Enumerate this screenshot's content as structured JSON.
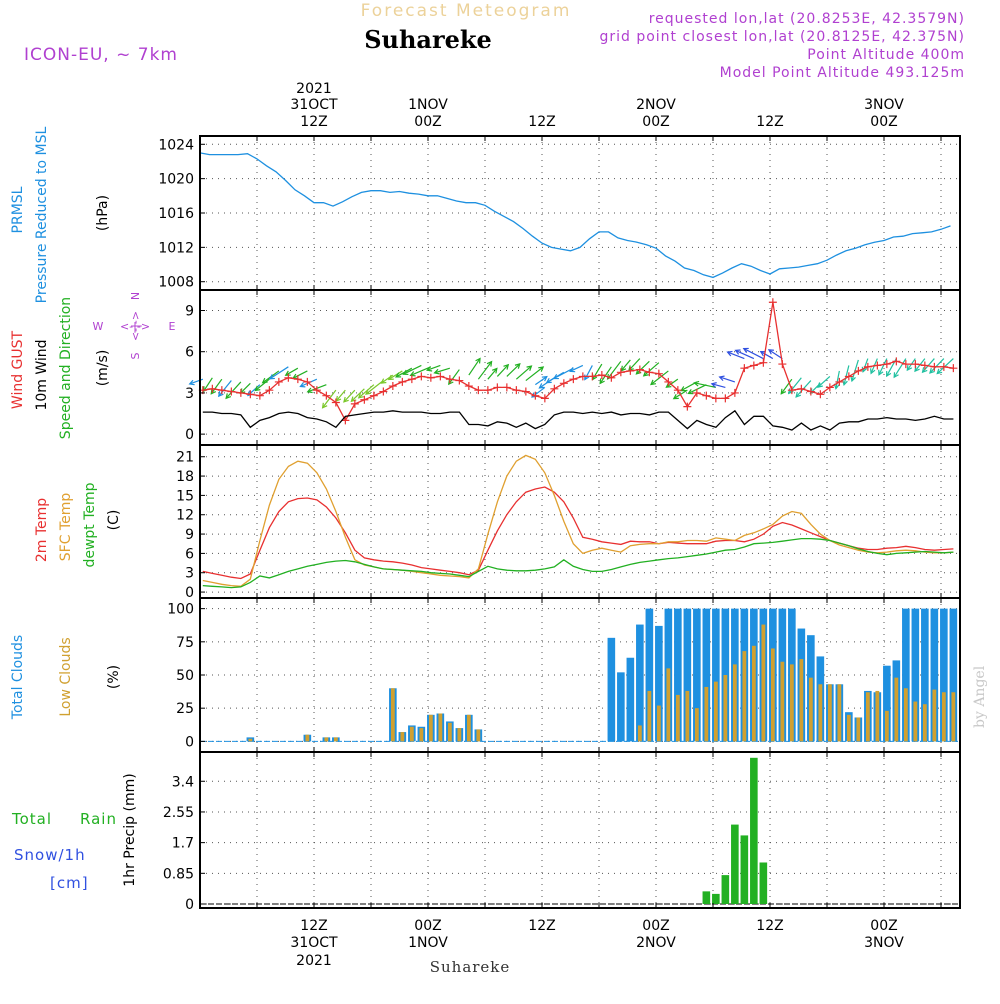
{
  "header": {
    "title": "Forecast Meteogram",
    "location": "Suhareke",
    "model": "ICON-EU, ~ 7km",
    "requested": "requested lon,lat (20.8253E, 42.3579N)",
    "gridpoint": "grid point closest lon,lat (20.8125E, 42.375N)",
    "altitude": "Point Altitude 400m",
    "model_altitude": "Model Point Altitude 493.125m"
  },
  "footer": {
    "location": "Suhareke",
    "credit": "by Angel"
  },
  "time_axis": {
    "top": [
      {
        "t": 12,
        "l1": "2021",
        "l2": "31OCT",
        "l3": "12Z"
      },
      {
        "t": 24,
        "l2": "1NOV",
        "l3": "00Z"
      },
      {
        "t": 36,
        "l3": "12Z"
      },
      {
        "t": 48,
        "l2": "2NOV",
        "l3": "00Z"
      },
      {
        "t": 60,
        "l3": "12Z"
      },
      {
        "t": 72,
        "l2": "3NOV",
        "l3": "00Z"
      }
    ],
    "bottom": [
      {
        "t": 12,
        "l1": "12Z",
        "l2": "31OCT",
        "l3": "2021"
      },
      {
        "t": 24,
        "l1": "00Z",
        "l2": "1NOV"
      },
      {
        "t": 36,
        "l1": "12Z"
      },
      {
        "t": 48,
        "l1": "00Z",
        "l2": "2NOV"
      },
      {
        "t": 60,
        "l1": "12Z"
      },
      {
        "t": 72,
        "l1": "00Z",
        "l2": "3NOV"
      }
    ]
  },
  "panels": {
    "pressure": {
      "labels": [
        {
          "text": "PRMSL",
          "color": "#1e90e0"
        },
        {
          "text": "Pressure Reduced to MSL",
          "color": "#1e90e0"
        },
        {
          "text": "(hPa)",
          "color": "#000000"
        }
      ]
    },
    "wind": {
      "labels": [
        {
          "text": "Wind GUST",
          "color": "#e83030"
        },
        {
          "text": "10m Wind",
          "color": "#000000"
        },
        {
          "text": "Speed and Direction",
          "color": "#22b022"
        },
        {
          "text": "(m/s)",
          "color": "#000000"
        }
      ],
      "compass": {
        "n": "N",
        "s": "S",
        "e": "E",
        "w": "W",
        "color": "#b040d0"
      }
    },
    "temp": {
      "labels": [
        {
          "text": "2m Temp",
          "color": "#e83030"
        },
        {
          "text": "SFC Temp",
          "color": "#e0a030"
        },
        {
          "text": "dewpt Temp",
          "color": "#22b022"
        },
        {
          "text": "(C)",
          "color": "#000000"
        }
      ]
    },
    "clouds": {
      "labels": [
        {
          "text": "Total Clouds",
          "color": "#1e90e0"
        },
        {
          "text": "Low Clouds",
          "color": "#d0a030"
        },
        {
          "text": "(%)",
          "color": "#000000"
        }
      ]
    },
    "precip": {
      "labels": [
        {
          "text": "Total",
          "color": "#22b022"
        },
        {
          "text": "Rain",
          "color": "#22b022"
        },
        {
          "text": "Snow/1h",
          "color": "#3050e0"
        },
        {
          "text": "[cm]",
          "color": "#3050e0"
        },
        {
          "text": "1hr Precip (mm)",
          "color": "#000000"
        }
      ]
    }
  },
  "chart_data": [
    {
      "type": "line",
      "name": "pressure",
      "ylim": [
        1007.5,
        1024.5
      ],
      "yticks": [
        1008,
        1012,
        1016,
        1020,
        1024
      ],
      "series": [
        {
          "name": "PRMSL",
          "color": "#1e90e0",
          "x": [
            0,
            1,
            2,
            3,
            4,
            5,
            6,
            7,
            8,
            9,
            10,
            11,
            12,
            13,
            14,
            15,
            16,
            17,
            18,
            19,
            20,
            21,
            22,
            23,
            24,
            25,
            26,
            27,
            28,
            29,
            30,
            31,
            32,
            33,
            34,
            35,
            36,
            37,
            38,
            39,
            40,
            41,
            42,
            43,
            44,
            45,
            46,
            47,
            48,
            49,
            50,
            51,
            52,
            53,
            54,
            55,
            56,
            57,
            58,
            59,
            60,
            61,
            62,
            63,
            64,
            65,
            66,
            67,
            68,
            69,
            70,
            71,
            72,
            73,
            74,
            75,
            76,
            77,
            78,
            79
          ],
          "y": [
            1023.0,
            1022.8,
            1022.8,
            1022.8,
            1022.8,
            1022.9,
            1022.3,
            1021.5,
            1020.8,
            1019.8,
            1018.7,
            1018.0,
            1017.2,
            1017.2,
            1016.8,
            1017.3,
            1017.9,
            1018.4,
            1018.6,
            1018.6,
            1018.4,
            1018.5,
            1018.3,
            1018.2,
            1018.0,
            1018.0,
            1017.7,
            1017.4,
            1017.2,
            1017.2,
            1016.9,
            1016.2,
            1015.6,
            1015.0,
            1014.2,
            1013.3,
            1012.5,
            1012.0,
            1011.8,
            1011.6,
            1012.0,
            1013.0,
            1013.8,
            1013.8,
            1013.1,
            1012.8,
            1012.6,
            1012.3,
            1011.9,
            1011.0,
            1010.4,
            1009.6,
            1009.3,
            1008.8,
            1008.5,
            1009.0,
            1009.6,
            1010.1,
            1009.8,
            1009.3,
            1008.9,
            1009.5,
            1009.6,
            1009.7,
            1009.9,
            1010.1,
            1010.5,
            1011.1,
            1011.6,
            1011.9,
            1012.3,
            1012.6,
            1012.8,
            1013.2,
            1013.3,
            1013.6,
            1013.7,
            1013.8,
            1014.1,
            1014.5
          ]
        }
      ]
    },
    {
      "type": "line",
      "name": "wind",
      "ylim": [
        -0.5,
        10.2
      ],
      "yticks": [
        0,
        3,
        6,
        9
      ],
      "series": [
        {
          "name": "Wind GUST",
          "color": "#e83030",
          "y": [
            3.2,
            3.3,
            3.2,
            3.1,
            3.0,
            2.9,
            2.8,
            3.2,
            3.8,
            4.1,
            4.0,
            3.8,
            3.2,
            2.8,
            2.3,
            1.0,
            2.2,
            2.5,
            2.8,
            3.1,
            3.5,
            3.8,
            4.0,
            4.2,
            4.1,
            4.2,
            4.0,
            3.9,
            3.5,
            3.2,
            3.2,
            3.4,
            3.4,
            3.2,
            3.1,
            2.8,
            2.6,
            3.3,
            3.7,
            4.0,
            4.2,
            4.2,
            4.3,
            4.1,
            4.5,
            4.6,
            4.7,
            4.5,
            4.4,
            3.8,
            3.2,
            2.0,
            3.0,
            2.8,
            2.6,
            2.6,
            3.0,
            4.8,
            5.0,
            5.2,
            9.6,
            5.1,
            3.2,
            3.3,
            3.1,
            2.9,
            3.4,
            3.8,
            4.2,
            4.6,
            4.9,
            5.0,
            5.1,
            5.3,
            5.1,
            5.1,
            5.0,
            4.9,
            4.9,
            4.8
          ]
        },
        {
          "name": "10m Wind",
          "color": "#000000",
          "y": [
            1.6,
            1.6,
            1.5,
            1.5,
            1.4,
            0.5,
            1.0,
            1.2,
            1.5,
            1.6,
            1.5,
            1.2,
            1.1,
            0.9,
            0.5,
            1.3,
            1.4,
            1.5,
            1.6,
            1.6,
            1.7,
            1.6,
            1.6,
            1.6,
            1.5,
            1.5,
            1.6,
            1.6,
            0.7,
            0.7,
            0.6,
            0.9,
            0.8,
            0.5,
            0.8,
            0.4,
            0.7,
            1.4,
            1.6,
            1.6,
            1.5,
            1.6,
            1.5,
            1.6,
            1.4,
            1.5,
            1.5,
            1.4,
            1.6,
            1.6,
            1.0,
            0.4,
            1.0,
            0.7,
            0.5,
            1.2,
            1.7,
            0.7,
            1.3,
            1.3,
            0.6,
            0.5,
            0.3,
            0.8,
            0.3,
            0.6,
            0.3,
            0.8,
            0.9,
            0.9,
            1.1,
            1.1,
            1.2,
            1.1,
            1.1,
            1.0,
            1.1,
            1.3,
            1.1,
            1.1
          ]
        }
      ]
    },
    {
      "type": "line",
      "name": "temp",
      "ylim": [
        -0.3,
        22.2
      ],
      "yticks": [
        0,
        3,
        6,
        9,
        12,
        15,
        18,
        21
      ],
      "series": [
        {
          "name": "2m Temp",
          "color": "#e83030",
          "y": [
            3.2,
            2.9,
            2.6,
            2.3,
            2.1,
            2.8,
            6.5,
            10.0,
            12.5,
            14.0,
            14.5,
            14.6,
            14.3,
            13.2,
            11.5,
            9.2,
            6.5,
            5.3,
            5.0,
            4.8,
            4.7,
            4.5,
            4.2,
            3.8,
            3.6,
            3.4,
            3.2,
            3.0,
            2.7,
            3.4,
            6.5,
            9.5,
            12.0,
            14.0,
            15.5,
            16.0,
            16.3,
            15.5,
            14.0,
            11.5,
            8.5,
            8.2,
            7.8,
            7.6,
            7.4,
            7.9,
            7.8,
            7.8,
            7.5,
            7.7,
            7.6,
            7.5,
            7.5,
            7.5,
            7.9,
            8.0,
            8.0,
            7.8,
            8.2,
            9.0,
            10.2,
            10.8,
            10.4,
            9.8,
            9.2,
            8.6,
            8.0,
            7.6,
            7.2,
            6.8,
            6.6,
            6.6,
            6.8,
            6.9,
            7.1,
            6.9,
            6.6,
            6.5,
            6.6,
            6.7
          ]
        },
        {
          "name": "SFC Temp",
          "color": "#e0a030",
          "y": [
            1.8,
            1.5,
            1.2,
            1.0,
            0.9,
            2.0,
            8.0,
            13.5,
            17.5,
            19.5,
            20.3,
            20.0,
            18.5,
            16.0,
            12.5,
            8.5,
            5.0,
            4.2,
            3.9,
            3.6,
            3.5,
            3.4,
            3.2,
            3.0,
            2.8,
            2.6,
            2.5,
            2.4,
            2.2,
            3.6,
            9.0,
            14.0,
            18.0,
            20.3,
            21.2,
            20.6,
            18.5,
            15.0,
            11.0,
            7.5,
            6.0,
            6.5,
            6.8,
            6.5,
            6.2,
            7.2,
            7.4,
            7.5,
            7.5,
            7.8,
            7.8,
            8.0,
            8.0,
            7.9,
            8.4,
            8.2,
            8.0,
            8.8,
            9.2,
            9.8,
            10.5,
            11.8,
            12.5,
            12.2,
            10.5,
            9.0,
            8.0,
            7.3,
            6.9,
            6.5,
            6.2,
            6.1,
            6.2,
            6.4,
            6.5,
            6.4,
            6.2,
            6.1,
            6.1,
            6.2
          ]
        },
        {
          "name": "dewpt Temp",
          "color": "#22b022",
          "y": [
            1.0,
            0.9,
            0.8,
            0.7,
            0.8,
            1.5,
            2.5,
            2.2,
            2.7,
            3.2,
            3.6,
            4.0,
            4.3,
            4.6,
            4.8,
            4.9,
            4.7,
            4.3,
            3.9,
            3.6,
            3.5,
            3.4,
            3.3,
            3.2,
            3.0,
            2.9,
            2.8,
            2.6,
            2.4,
            3.2,
            4.0,
            3.6,
            3.4,
            3.3,
            3.3,
            3.4,
            3.6,
            3.9,
            5.0,
            4.0,
            3.5,
            3.2,
            3.2,
            3.5,
            3.9,
            4.3,
            4.6,
            4.8,
            5.0,
            5.2,
            5.3,
            5.5,
            5.7,
            5.9,
            6.2,
            6.5,
            6.6,
            7.0,
            7.5,
            7.6,
            7.7,
            7.9,
            8.1,
            8.3,
            8.3,
            8.2,
            8.0,
            7.6,
            7.2,
            6.7,
            6.3,
            6.0,
            5.8,
            6.0,
            6.1,
            6.2,
            6.3,
            6.2,
            6.1,
            6.2
          ]
        }
      ]
    },
    {
      "type": "bar",
      "name": "clouds",
      "ylim": [
        -5,
        105
      ],
      "yticks": [
        0,
        25,
        50,
        75,
        100
      ],
      "series": [
        {
          "name": "Total Clouds",
          "color": "#1e90e0",
          "values": [
            0,
            0,
            0,
            0,
            0,
            3,
            0,
            0,
            0,
            0,
            0,
            5,
            0,
            3,
            3,
            0,
            0,
            0,
            0,
            0,
            40,
            7,
            12,
            11,
            20,
            21,
            15,
            10,
            20,
            9,
            0,
            0,
            0,
            0,
            0,
            0,
            0,
            0,
            0,
            0,
            0,
            0,
            0,
            78,
            52,
            63,
            88,
            100,
            87,
            100,
            100,
            100,
            100,
            100,
            100,
            100,
            100,
            100,
            100,
            100,
            100,
            100,
            100,
            85,
            80,
            64,
            43,
            43,
            22,
            18,
            38,
            37,
            57,
            61,
            100,
            100,
            100,
            100,
            100,
            100
          ]
        },
        {
          "name": "Low Clouds",
          "color": "#d0a030",
          "values": [
            0,
            0,
            0,
            0,
            0,
            2,
            0,
            0,
            0,
            0,
            0,
            5,
            0,
            3,
            3,
            0,
            0,
            0,
            0,
            0,
            40,
            7,
            11,
            10,
            20,
            21,
            14,
            10,
            20,
            9,
            0,
            0,
            0,
            0,
            0,
            0,
            0,
            0,
            0,
            0,
            0,
            0,
            0,
            0,
            0,
            0,
            12,
            38,
            27,
            55,
            35,
            38,
            25,
            41,
            45,
            50,
            58,
            68,
            72,
            88,
            70,
            60,
            58,
            62,
            48,
            43,
            43,
            43,
            20,
            18,
            37,
            38,
            23,
            48,
            40,
            30,
            28,
            39,
            37,
            37
          ]
        }
      ]
    },
    {
      "type": "bar",
      "name": "precip",
      "ylim": [
        0,
        4.1
      ],
      "yticks": [
        0,
        0.85,
        1.7,
        2.55,
        3.4
      ],
      "ytick_labels": [
        "0",
        "0.85",
        "1.7",
        "2.55",
        "3.4"
      ],
      "series": [
        {
          "name": "Total Rain",
          "color": "#22b022",
          "values": [
            0,
            0,
            0,
            0,
            0,
            0,
            0,
            0,
            0,
            0,
            0,
            0,
            0,
            0,
            0,
            0,
            0,
            0,
            0,
            0,
            0,
            0,
            0,
            0,
            0,
            0,
            0,
            0,
            0,
            0,
            0,
            0,
            0,
            0,
            0,
            0,
            0,
            0,
            0,
            0,
            0,
            0,
            0,
            0,
            0,
            0,
            0,
            0,
            0,
            0,
            0,
            0,
            0,
            0.35,
            0.28,
            0.8,
            2.2,
            1.9,
            4.05,
            1.15,
            0,
            0,
            0,
            0,
            0,
            0,
            0,
            0,
            0,
            0,
            0,
            0,
            0,
            0,
            0,
            0,
            0,
            0,
            0,
            0
          ]
        }
      ]
    }
  ]
}
